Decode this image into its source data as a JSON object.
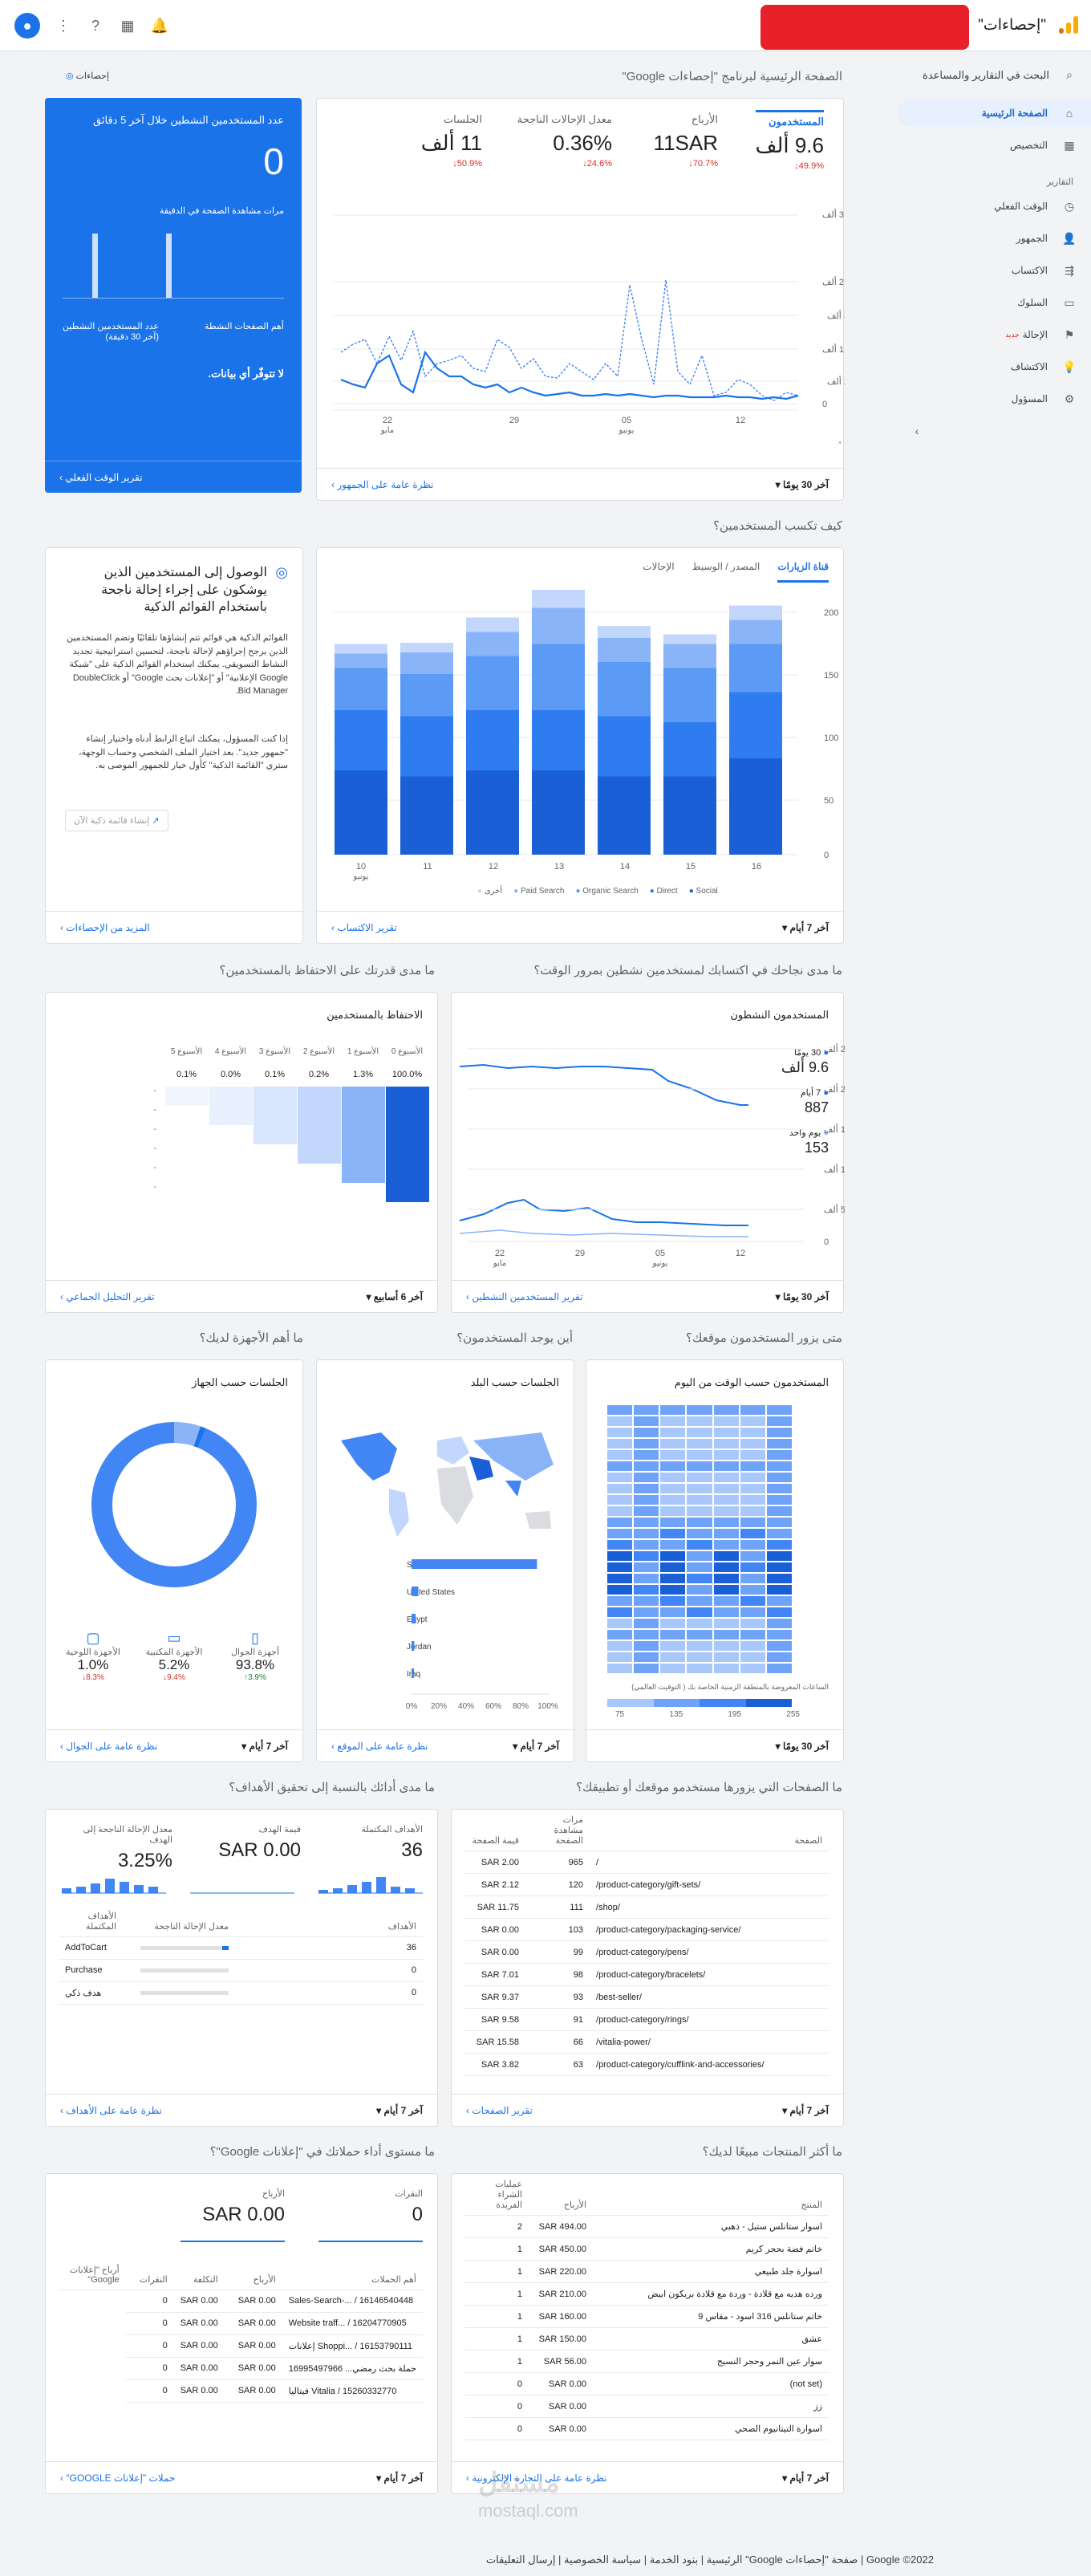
{
  "top": {
    "property": "\"إحصاءات\"",
    "icons": [
      "avatar-icon",
      "notifications-icon",
      "apps-icon",
      "help-icon",
      "more-vert-icon"
    ]
  },
  "sidebar": {
    "search": "البحث في التقارير والمساعدة",
    "home": "الصفحة الرئيسية",
    "custom": "التخصيص",
    "reports_head": "التقارير",
    "realtime": "الوقت الفعلي",
    "audience": "الجمهور",
    "acquisition": "الاكتساب",
    "behavior": "السلوك",
    "conversions": "الإحالة",
    "conversions_new": "جديد",
    "discover": "الاكتشاف",
    "admin": "المسؤول"
  },
  "section1": {
    "title": "الصفحة الرئيسية لبرنامج \"إحصاءات Google\"",
    "insights": "إحصاءات"
  },
  "overview": {
    "metrics": [
      {
        "label": "المستخدمون",
        "value": "9.6 ألف",
        "change": "49.9%"
      },
      {
        "label": "الأرباح",
        "value": "11SAR",
        "change": "70.7%"
      },
      {
        "label": "معدل الإحالات الناجحة",
        "value": "0.36%",
        "change": "24.6%"
      },
      {
        "label": "الجلسات",
        "value": "11 ألف",
        "change": "50.9%"
      }
    ],
    "y_ticks": [
      "3 ألف",
      "2 ألف",
      "1 ألف",
      "0"
    ],
    "x_ticks": [
      "22",
      "29",
      "05",
      "12"
    ],
    "x_sub": [
      "مايو",
      "",
      "يونيو",
      ""
    ],
    "period": "آخر 30 يومًا",
    "link": "نظرة عامة على الجمهور"
  },
  "realtime": {
    "title": "عدد المستخدمين النشطين خلال آخر 5 دقائق",
    "value": "0",
    "sub": "مرات مشاهدة الصفحة في الدقيقة",
    "top_pages": "أهم الصفحات النشطة",
    "active_users": "عدد المستخدمين النشطين (آخر 30 دقيقة)",
    "no_data": "لا تتوفّر أي بيانات.",
    "link": "تقرير الوقت الفعلي"
  },
  "section2": {
    "title": "كيف تكسب المستخدمين؟"
  },
  "acquisition": {
    "tabs": [
      "قناة الزيارات",
      "المصدر / الوسيط",
      "الإحالات"
    ],
    "y_ticks": [
      "200",
      "150",
      "100",
      "50",
      "0"
    ],
    "x_ticks": [
      "10",
      "11",
      "12",
      "13",
      "14",
      "15",
      "16"
    ],
    "x_sub": "يونيو",
    "legend": [
      "Social",
      "Direct",
      "Organic Search",
      "Paid Search",
      "أخرى"
    ],
    "period": "آخر 7 أيام",
    "link": "تقرير الاكتساب"
  },
  "smartlists": {
    "title": "الوصول إلى المستخدمين الذين يوشكون على إجراء إحالة ناجحة باستخدام القوائم الذكية",
    "p1": "القوائم الذكية هي قوائم تتم إنشاؤها تلقائيًا وتضم المستخدمين الذين يرجح إجراؤهم لإحالة ناجحة، لتحسين استراتيجية تجديد النشاط التسويقي. يمكنك استخدام القوائم الذكية على \"شبكة Google الإعلانية\" أو \"إعلانات بحث Google\" أو DoubleClick Bid Manager.",
    "p2": "إذا كنت المسؤول، يمكنك اتباع الرابط أدناه واختيار إنشاء \"جمهور جديد\". بعد اختيار الملف الشخصي وحساب الوجهة، ستري \"القائمة الذكية\" كأول خيار للجمهور الموصى به.",
    "button": "إنشاء قائمة ذكية الآن",
    "link": "المزيد من الإحصاءات"
  },
  "section3a": {
    "title": "ما مدى نجاحك في اكتسابك لمستخدمين نشطين بمرور الوقت؟"
  },
  "section3b": {
    "title": "ما مدى قدرتك على الاحتفاظ بالمستخدمين؟"
  },
  "active": {
    "title": "المستخدمون النشطون",
    "legend": [
      {
        "label": "30 يومًا",
        "value": "9.6 ألف"
      },
      {
        "label": "7 أيام",
        "value": "887"
      },
      {
        "label": "يوم واحد",
        "value": "153"
      }
    ],
    "y_ticks": [
      "25 ألف",
      "20 ألف",
      "15 ألف",
      "10 ألف",
      "5 ألف",
      "0"
    ],
    "x_ticks": [
      "22",
      "29",
      "05",
      "12"
    ],
    "x_sub": [
      "مايو",
      "",
      "يونيو",
      ""
    ],
    "period": "آخر 30 يومًا",
    "link": "تقرير المستخدمين النشطين"
  },
  "retention": {
    "title": "الاحتفاظ بالمستخدمين",
    "cols": [
      "الأسبوع 0",
      "الأسبوع 1",
      "الأسبوع 2",
      "الأسبوع 3",
      "الأسبوع 4",
      "الأسبوع 5"
    ],
    "vals": [
      "100.0%",
      "1.3%",
      "0.2%",
      "0.1%",
      "0.0%",
      "0.1%"
    ],
    "period": "آخر 6 أسابيع",
    "link": "تقرير التحليل الجماعي"
  },
  "section4a": {
    "title": "متى يزور المستخدمون موقعك؟"
  },
  "section4b": {
    "title": "أين يوجد المستخدمون؟"
  },
  "section4c": {
    "title": "ما أهم الأجهزة لديك؟"
  },
  "heatmap": {
    "title": "المستخدمون حسب الوقت من اليوم",
    "note": "الساعات المعروضة بالمنطقة الزمنية الخاصة بك ( التوقيت العالمي)",
    "legend": [
      "75",
      "135",
      "195",
      "255"
    ],
    "period": "آخر 30 يومًا"
  },
  "geo": {
    "title": "الجلسات حسب البلد",
    "countries": [
      "Saudi Arabia",
      "United States",
      "Egypt",
      "Jordan",
      "Iraq"
    ],
    "values": [
      0.92,
      0.05,
      0.03,
      0.02,
      0.01
    ],
    "x_ticks": [
      "0%",
      "20%",
      "40%",
      "60%",
      "80%",
      "100%"
    ],
    "period": "آخر 7 أيام",
    "link": "نظرة عامة على الموقع"
  },
  "devices": {
    "title": "الجلسات حسب الجهاز",
    "items": [
      {
        "label": "أجهزة الجوال",
        "value": "93.8%",
        "change": "3.9%"
      },
      {
        "label": "الأجهزة المكتبية",
        "value": "5.2%",
        "change": "9.4%"
      },
      {
        "label": "الأجهزة اللوحية",
        "value": "1.0%",
        "change": "8.3%"
      }
    ],
    "period": "آخر 7 أيام",
    "link": "نظرة عامة على الجوال"
  },
  "section5a": {
    "title": "ما الصفحات التي يزورها مستخدمو موقعك أو تطبيقك؟"
  },
  "section5b": {
    "title": "ما مدى أدائك بالنسبة إلى تحقيق الأهداف؟"
  },
  "pages": {
    "headers": [
      "الصفحة",
      "مرات مشاهدة الصفحة",
      "قيمة الصفحة"
    ],
    "rows": [
      [
        "/",
        "965",
        "SAR 2.00"
      ],
      [
        "/product-category/gift-sets/",
        "120",
        "SAR 2.12"
      ],
      [
        "/shop/",
        "111",
        "SAR 11.75"
      ],
      [
        "/product-category/packaging-service/",
        "103",
        "SAR 0.00"
      ],
      [
        "/product-category/pens/",
        "99",
        "SAR 0.00"
      ],
      [
        "/product-category/bracelets/",
        "98",
        "SAR 7.01"
      ],
      [
        "/best-seller/",
        "93",
        "SAR 9.37"
      ],
      [
        "/product-category/rings/",
        "91",
        "SAR 9.58"
      ],
      [
        "/vitalia-power/",
        "66",
        "SAR 15.58"
      ],
      [
        "/product-category/cufflink-and-accessories/",
        "63",
        "SAR 3.82"
      ]
    ],
    "period": "آخر 7 أيام",
    "link": "تقرير الصفحات"
  },
  "goals": {
    "metrics": [
      {
        "label": "الأهداف المكتملة",
        "value": "36"
      },
      {
        "label": "قيمة الهدف",
        "value": "SAR 0.00"
      },
      {
        "label": "معدل الإحالة الناجحة إلى الهدف",
        "value": "3.25%"
      }
    ],
    "headers": [
      "الأهداف",
      "معدل الإحالة الناجحة",
      "الأهداف المكتملة"
    ],
    "rows": [
      [
        "AddToCart",
        "36"
      ],
      [
        "Purchase",
        "0"
      ],
      [
        "هدف ذكي",
        "0"
      ]
    ],
    "period": "آخر 7 أيام",
    "link": "نظرة عامة على الأهداف"
  },
  "section6a": {
    "title": "ما أكثر المنتجات مبيعًا لديك؟"
  },
  "section6b": {
    "title": "ما مستوى أداء حملاتك في \"إعلانات Google\"؟"
  },
  "products": {
    "headers": [
      "المنتج",
      "الأرباح",
      "عمليات الشراء الفريدة"
    ],
    "rows": [
      [
        "اسوار ستانلس ستيل - ذهبي",
        "SAR 494.00",
        "2"
      ],
      [
        "خاتم فضة بحجر كريم",
        "SAR 450.00",
        "1"
      ],
      [
        "اسوارة جلد طبيعي",
        "SAR 220.00",
        "1"
      ],
      [
        "ورده هديه مع قلادة - وردة مع قلادة بريكون ابيض",
        "SAR 210.00",
        "1"
      ],
      [
        "خاتم ستانلس 316 اسود - مقاس 9",
        "SAR 160.00",
        "1"
      ],
      [
        "عشق",
        "SAR 150.00",
        "1"
      ],
      [
        "سوار عين النمر وحجر النسيج",
        "SAR 56.00",
        "1"
      ],
      [
        "(not set)",
        "SAR 0.00",
        "0"
      ],
      [
        "زز",
        "SAR 0.00",
        "0"
      ],
      [
        "اسوارة التيتانيوم الصحي",
        "SAR 0.00",
        "0"
      ]
    ],
    "period": "آخر 7 أيام",
    "link": "نظرة عامة على التجارة الإلكترونية"
  },
  "ads": {
    "metrics": [
      {
        "label": "النقرات",
        "value": "0"
      },
      {
        "label": "الأرباح",
        "value": "SAR 0.00"
      }
    ],
    "headers": [
      "أهم الحملات",
      "الأرباح",
      "التكلفة",
      "النقرات",
      "أرباح \"إعلانات Google\""
    ],
    "rows": [
      [
        "Sales-Search-... / 16146540448",
        "SAR 0.00",
        "SAR 0.00",
        "0"
      ],
      [
        "Website traff... / 16204770905",
        "SAR 0.00",
        "SAR 0.00",
        "0"
      ],
      [
        "Shoppi... / 16153790111 إعلانات",
        "SAR 0.00",
        "SAR 0.00",
        "0"
      ],
      [
        "حملة بحث رمضي... 16995497966",
        "SAR 0.00",
        "SAR 0.00",
        "0"
      ],
      [
        "Vitalia / 15260332770 فيتاليا",
        "SAR 0.00",
        "SAR 0.00",
        "0"
      ]
    ],
    "period": "آخر 7 أيام",
    "link": "حملات \"إعلانات GOOGLE\""
  },
  "footer": {
    "text": "2022© Google | صفحة \"إحصاءات Google\" الرئيسية | بنود الخدمة | سياسة الخصوصية | إرسال التعليقات",
    "watermark": "مستقل",
    "watermark2": "mostaql.com"
  },
  "colors": {
    "accent": "#1a73e8",
    "negative": "#d93025",
    "stack": [
      "#1a5fd6",
      "#2e7cf0",
      "#5c9bf5",
      "#8ab4f8",
      "#c2d7fb"
    ]
  }
}
